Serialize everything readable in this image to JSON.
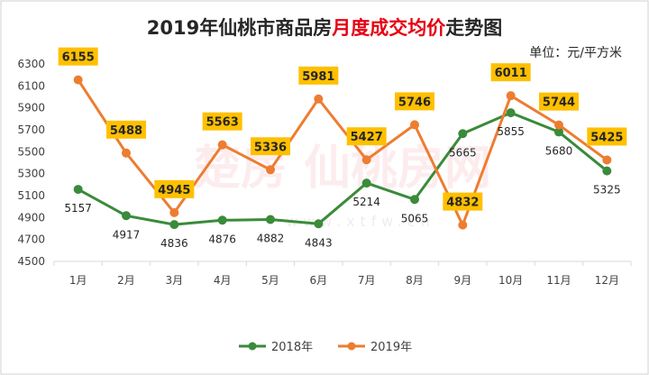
{
  "chart_data": {
    "type": "line",
    "title_parts": [
      "2019年仙桃市商品房",
      "月度成交均价",
      "走势图"
    ],
    "unit": "单位：元/平方米",
    "watermark": "楚房 仙桃房网",
    "watermark_url": "www.xtfw.cn",
    "categories": [
      "1月",
      "2月",
      "3月",
      "4月",
      "5月",
      "6月",
      "7月",
      "8月",
      "9月",
      "10月",
      "11月",
      "12月"
    ],
    "ylim": [
      4500,
      6300
    ],
    "yticks": [
      4500,
      4700,
      4900,
      5100,
      5300,
      5500,
      5700,
      5900,
      6100,
      6300
    ],
    "grid": false,
    "legend_position": "bottom",
    "series": [
      {
        "name": "2018年",
        "color": "#3a8b3a",
        "values": [
          5157,
          4917,
          4836,
          4876,
          4882,
          4843,
          5214,
          5065,
          5665,
          5855,
          5680,
          5325
        ]
      },
      {
        "name": "2019年",
        "color": "#ed7d31",
        "values": [
          6155,
          5488,
          4945,
          5563,
          5336,
          5981,
          5427,
          5746,
          4832,
          6011,
          5744,
          5425
        ]
      }
    ],
    "colors": {
      "title_highlight": "#e60012",
      "label_box": "#ffc000",
      "axis": "#d9d9d9",
      "border": "#d0d0d0"
    }
  }
}
